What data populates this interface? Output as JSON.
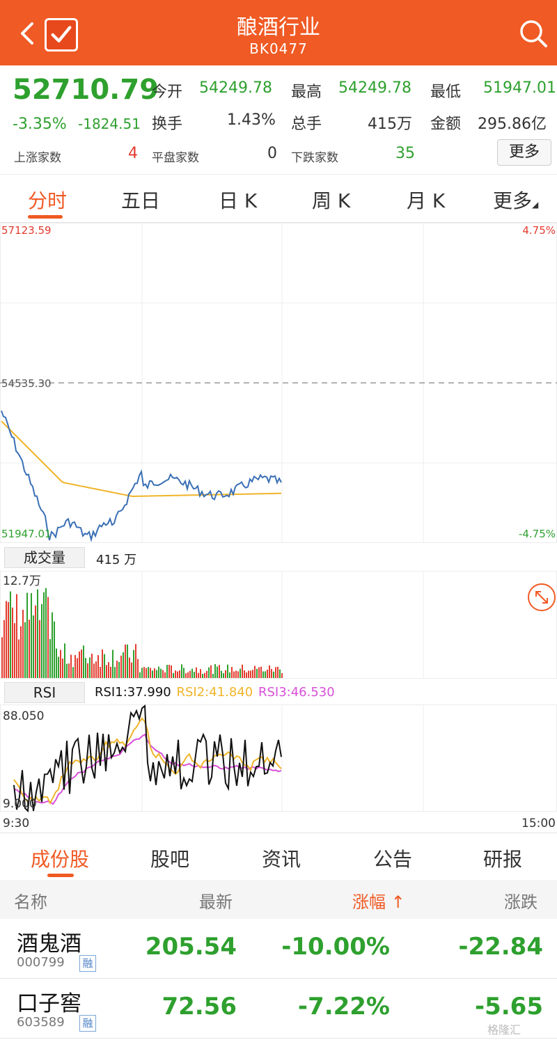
{
  "header": {
    "title": "酿酒行业",
    "code": "BK0477"
  },
  "quote": {
    "price": "52710.79",
    "change_pct": "-3.35%",
    "change_abs": "-1824.51",
    "open_label": "今开",
    "open_value": "54249.78",
    "high_label": "最高",
    "high_value": "54249.78",
    "low_label": "最低",
    "low_value": "51947.01",
    "turnover_label": "换手",
    "turnover_value": "1.43%",
    "volume_label": "总手",
    "volume_value": "415万",
    "amount_label": "金额",
    "amount_value": "295.86亿",
    "up_label": "上涨家数",
    "up_value": "4",
    "flat_label": "平盘家数",
    "flat_value": "0",
    "down_label": "下跌家数",
    "down_value": "35",
    "more_label": "更多"
  },
  "tabs": [
    {
      "label": "分时"
    },
    {
      "label": "五日"
    },
    {
      "label": "日 K"
    },
    {
      "label": "周 K"
    },
    {
      "label": "月 K"
    },
    {
      "label": "更多"
    }
  ],
  "chart": {
    "max_price": "57123.59",
    "max_pct": "4.75%",
    "prev_close": "54535.30",
    "min_price": "51947.01",
    "min_pct": "-4.75%",
    "volume_label": "成交量",
    "volume_value": "415 万",
    "volume_max": "12.7万",
    "rsi_label": "RSI",
    "rsi1": "RSI1:37.990",
    "rsi2": "RSI2:41.840",
    "rsi3": "RSI3:46.530",
    "rsi_max": "88.050",
    "rsi_min": "9.000",
    "time_start": "9:30",
    "time_end": "15:00",
    "colors": {
      "price": "#3a6fb5",
      "avg": "#f0b429",
      "rsi1": "#111111",
      "rsi2": "#f0b429",
      "rsi3": "#d84fd8",
      "up": "#e33b2e",
      "down": "#2ea02e"
    }
  },
  "subtabs": [
    {
      "label": "成份股"
    },
    {
      "label": "股吧"
    },
    {
      "label": "资讯"
    },
    {
      "label": "公告"
    },
    {
      "label": "研报"
    }
  ],
  "table": {
    "headers": {
      "name": "名称",
      "latest": "最新",
      "pct": "涨幅 ↑",
      "chg": "涨跌"
    },
    "rows": [
      {
        "name": "酒鬼酒",
        "code": "000799",
        "tag": "融",
        "latest": "205.54",
        "pct": "-10.00%",
        "chg": "-22.84"
      },
      {
        "name": "口子窖",
        "code": "603589",
        "tag": "融",
        "latest": "72.56",
        "pct": "-7.22%",
        "chg": "-5.65"
      }
    ]
  },
  "watermark": "格隆汇"
}
